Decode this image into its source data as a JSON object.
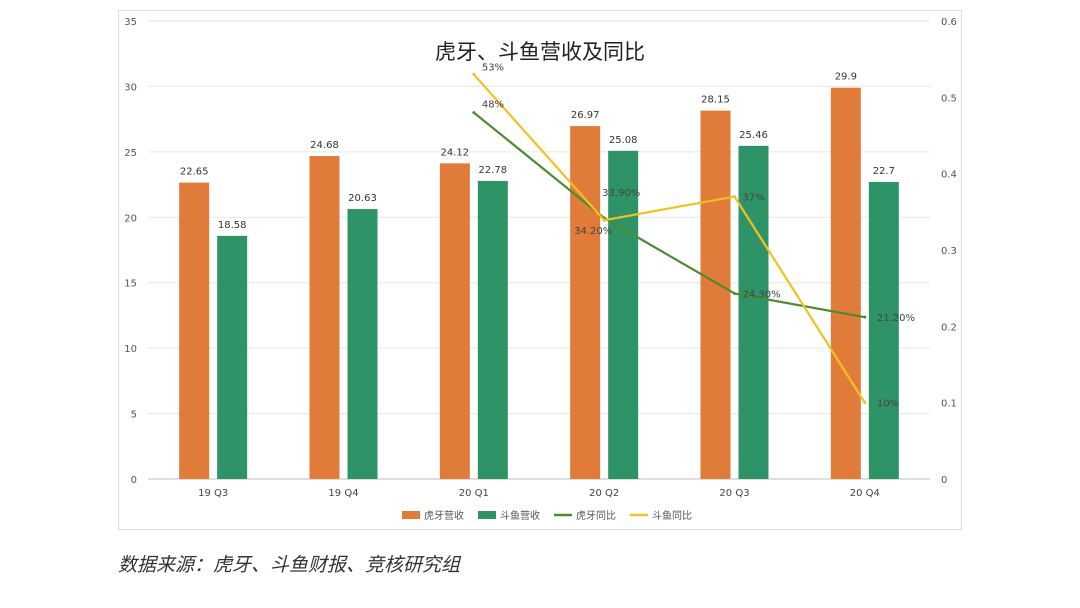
{
  "chart_data": {
    "type": "bar",
    "title": "虎牙、斗鱼营收及同比",
    "categories": [
      "19 Q3",
      "19 Q4",
      "20 Q1",
      "20 Q2",
      "20 Q3",
      "20 Q4"
    ],
    "ylim": [
      0,
      35
    ],
    "y_ticks": [
      0,
      5,
      10,
      15,
      20,
      25,
      30,
      35
    ],
    "y2lim": [
      0,
      0.6
    ],
    "y2_ticks": [
      "0",
      "0.1",
      "0.2",
      "0.3",
      "0.4",
      "0.5",
      "0.6"
    ],
    "grid": true,
    "legend_position": "bottom",
    "series": [
      {
        "name": "虎牙营收",
        "kind": "bar",
        "color": "#E07B39",
        "values": [
          22.65,
          24.68,
          24.12,
          26.97,
          28.15,
          29.9
        ],
        "labels": [
          "22.65",
          "24.68",
          "24.12",
          "26.97",
          "28.15",
          "29.9"
        ]
      },
      {
        "name": "斗鱼营收",
        "kind": "bar",
        "color": "#2E9467",
        "values": [
          18.58,
          20.63,
          22.78,
          25.08,
          25.46,
          22.7
        ],
        "labels": [
          "18.58",
          "20.63",
          "22.78",
          "25.08",
          "25.46",
          "22.7"
        ]
      },
      {
        "name": "虎牙同比",
        "kind": "line",
        "axis": "right",
        "color": "#4E8B30",
        "values": [
          null,
          null,
          0.48,
          0.342,
          0.243,
          0.212
        ],
        "labels": [
          null,
          null,
          "48%",
          "34.20%",
          "24.30%",
          "21.20%"
        ]
      },
      {
        "name": "斗鱼同比",
        "kind": "line",
        "axis": "right",
        "color": "#F2C11D",
        "values": [
          null,
          null,
          0.53,
          0.339,
          0.37,
          0.1
        ],
        "labels": [
          null,
          null,
          "53%",
          "33.90%",
          "37%",
          "10%"
        ]
      }
    ]
  },
  "source_note": "数据来源：虎牙、斗鱼财报、竞核研究组"
}
